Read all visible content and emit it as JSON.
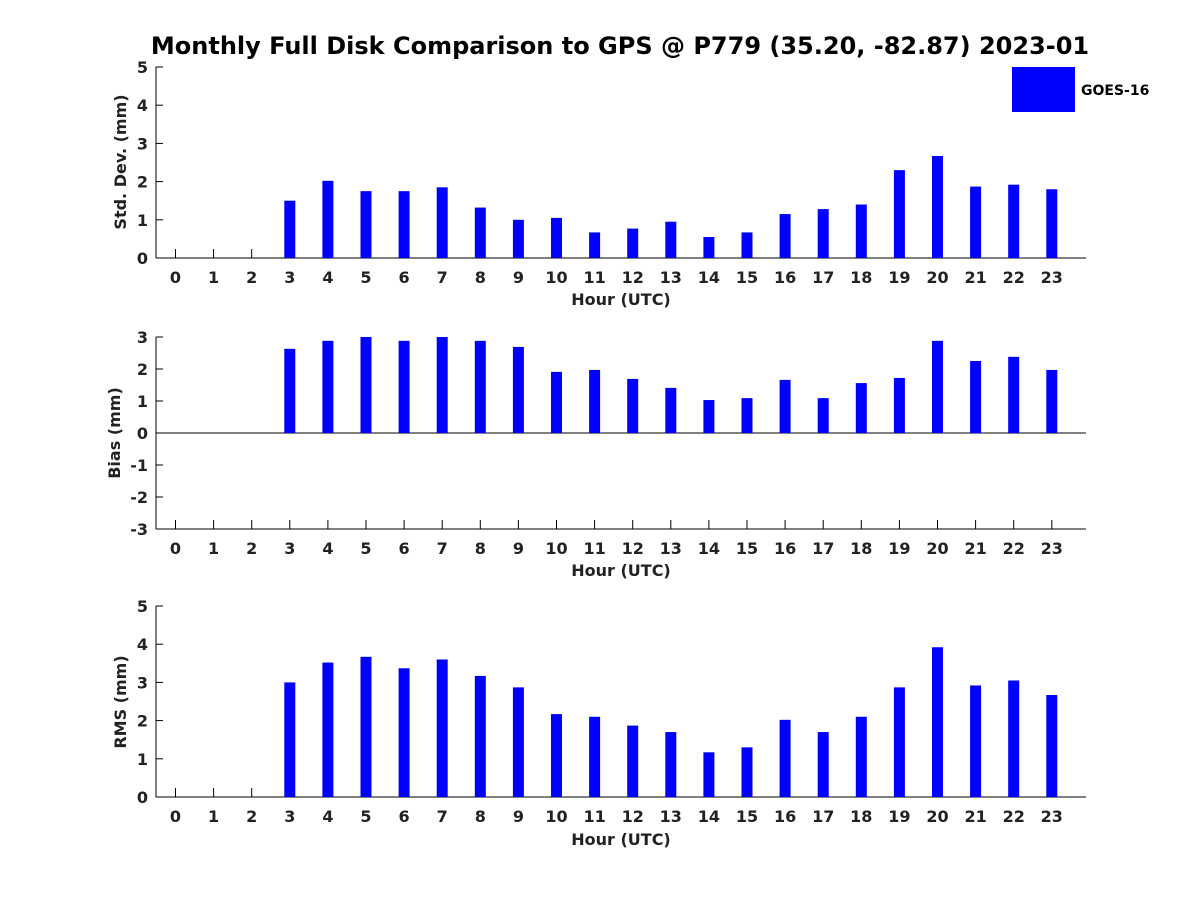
{
  "title": "Monthly Full Disk Comparison to GPS @ P779 (35.20, -82.87) 2023-01",
  "bar_color": "#0000ff",
  "legend": {
    "label": "GOES-16",
    "placement": "top-right"
  },
  "chart_data": [
    {
      "type": "bar",
      "xlabel": "Hour (UTC)",
      "ylabel": "Std. Dev. (mm)",
      "ylim": [
        0,
        5
      ],
      "yticks": [
        0,
        1,
        2,
        3,
        4,
        5
      ],
      "categories": [
        "0",
        "1",
        "2",
        "3",
        "4",
        "5",
        "6",
        "7",
        "8",
        "9",
        "10",
        "11",
        "12",
        "13",
        "14",
        "15",
        "16",
        "17",
        "18",
        "19",
        "20",
        "21",
        "22",
        "23"
      ],
      "series": [
        {
          "name": "GOES-16",
          "values": [
            null,
            null,
            null,
            1.5,
            2.02,
            1.75,
            1.75,
            1.85,
            1.32,
            1.0,
            1.05,
            0.67,
            0.77,
            0.95,
            0.55,
            0.67,
            1.15,
            1.28,
            1.4,
            2.3,
            2.67,
            1.87,
            1.92,
            1.8
          ]
        }
      ]
    },
    {
      "type": "bar",
      "xlabel": "Hour (UTC)",
      "ylabel": "Bias (mm)",
      "ylim": [
        -3,
        3
      ],
      "yticks": [
        -3,
        -2,
        -1,
        0,
        1,
        2,
        3
      ],
      "categories": [
        "0",
        "1",
        "2",
        "3",
        "4",
        "5",
        "6",
        "7",
        "8",
        "9",
        "10",
        "11",
        "12",
        "13",
        "14",
        "15",
        "16",
        "17",
        "18",
        "19",
        "20",
        "21",
        "22",
        "23"
      ],
      "series": [
        {
          "name": "GOES-16",
          "values": [
            null,
            null,
            null,
            2.63,
            2.88,
            3.0,
            2.88,
            3.0,
            2.88,
            2.69,
            1.91,
            1.97,
            1.69,
            1.41,
            1.03,
            1.09,
            1.66,
            1.09,
            1.56,
            1.72,
            2.88,
            2.25,
            2.38,
            1.97
          ]
        }
      ]
    },
    {
      "type": "bar",
      "xlabel": "Hour (UTC)",
      "ylabel": "RMS (mm)",
      "ylim": [
        0,
        5
      ],
      "yticks": [
        0,
        1,
        2,
        3,
        4,
        5
      ],
      "categories": [
        "0",
        "1",
        "2",
        "3",
        "4",
        "5",
        "6",
        "7",
        "8",
        "9",
        "10",
        "11",
        "12",
        "13",
        "14",
        "15",
        "16",
        "17",
        "18",
        "19",
        "20",
        "21",
        "22",
        "23"
      ],
      "series": [
        {
          "name": "GOES-16",
          "values": [
            null,
            null,
            null,
            3.0,
            3.52,
            3.67,
            3.37,
            3.6,
            3.17,
            2.87,
            2.17,
            2.1,
            1.87,
            1.7,
            1.17,
            1.3,
            2.02,
            1.7,
            2.1,
            2.87,
            3.92,
            2.92,
            3.05,
            2.67
          ]
        }
      ]
    }
  ]
}
